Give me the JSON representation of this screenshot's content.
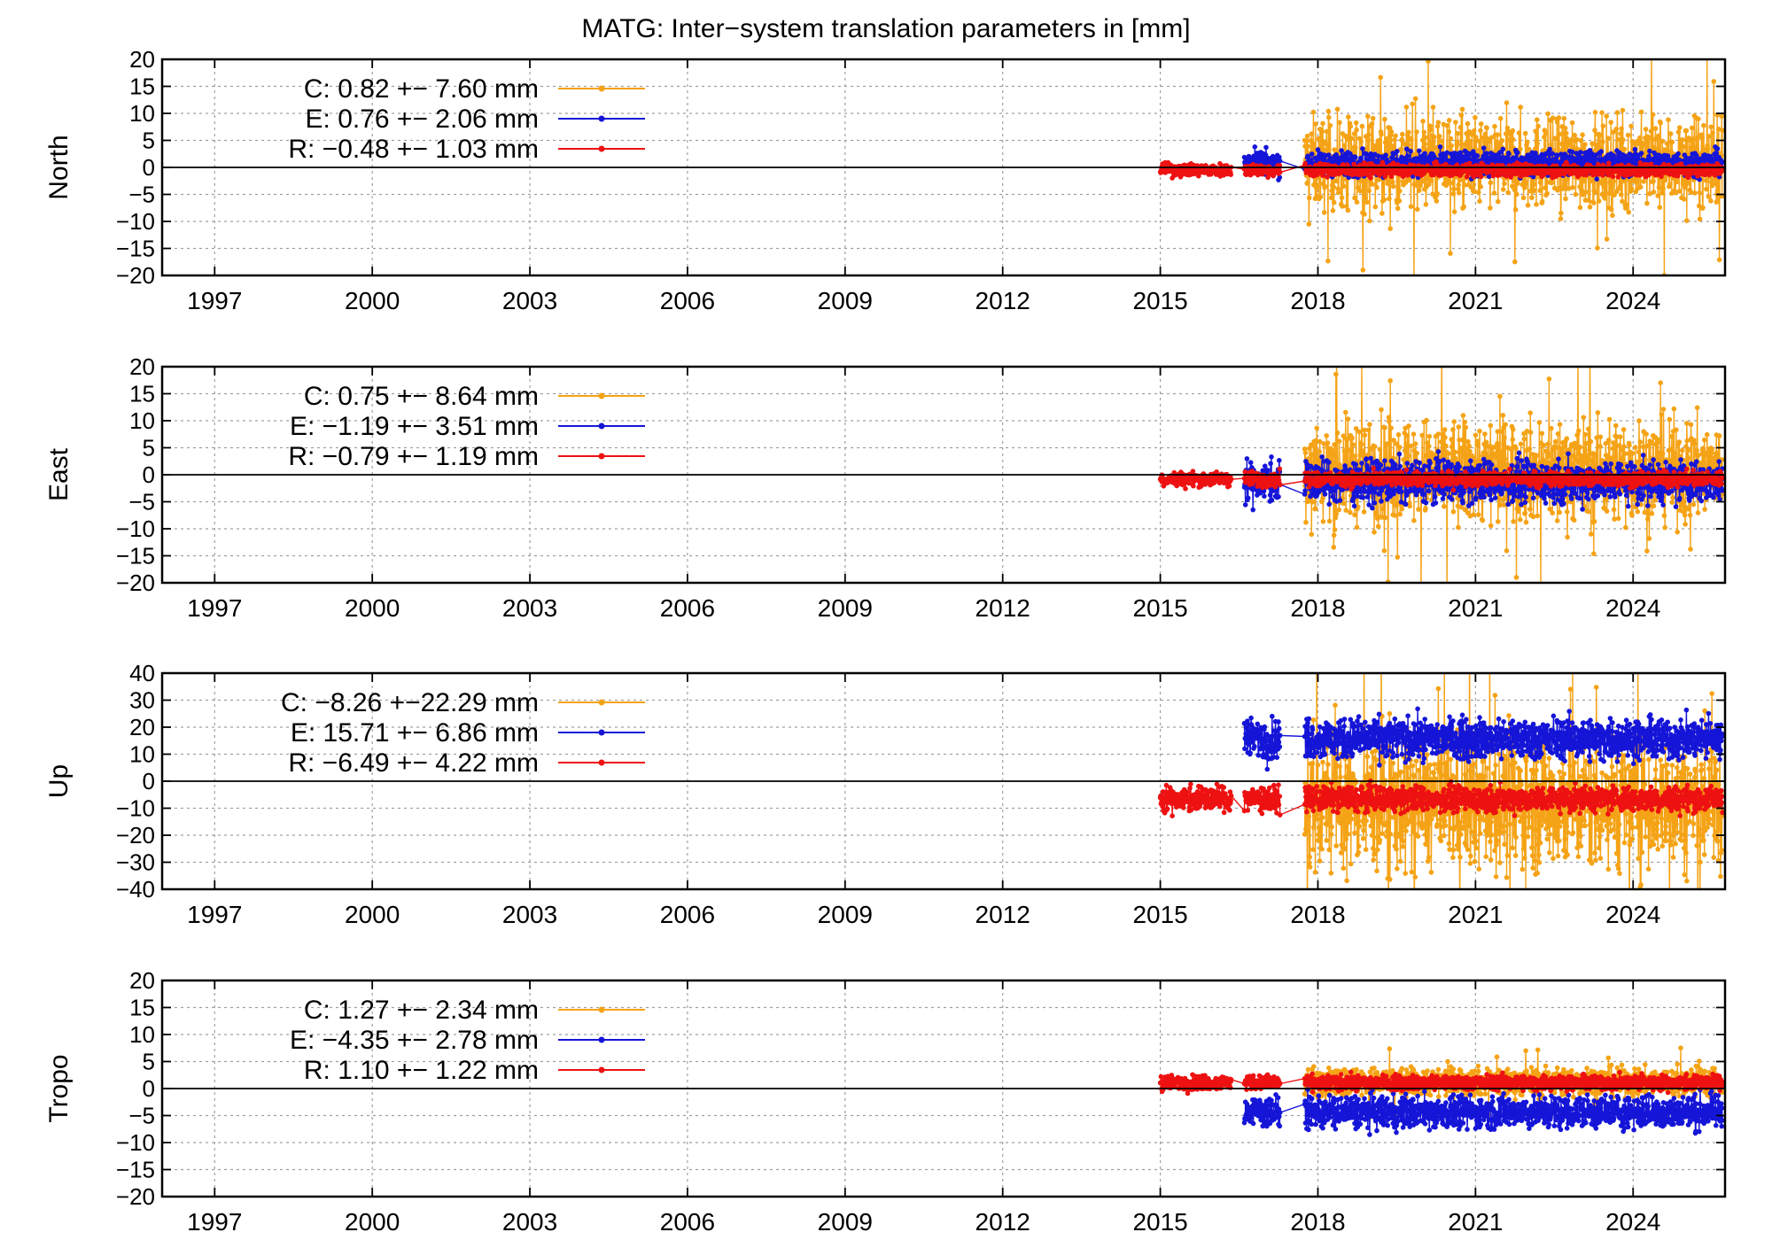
{
  "title": "MATG: Inter−system translation parameters in [mm]",
  "chart_data": [
    {
      "type": "line",
      "panel": "North",
      "ylabel": "North",
      "xlim": [
        1996.0,
        2025.75
      ],
      "ylim": [
        -20,
        20
      ],
      "xticks": [
        1997,
        2000,
        2003,
        2006,
        2009,
        2012,
        2015,
        2018,
        2021,
        2024
      ],
      "xtick_labels": [
        "1997",
        "2000",
        "2003",
        "2006",
        "2009",
        "2012",
        "2015",
        "2018",
        "2021",
        "2024"
      ],
      "yticks": [
        -20,
        -15,
        -10,
        -5,
        0,
        5,
        10,
        15,
        20
      ],
      "ytick_labels": [
        "−20",
        "−15",
        "−10",
        "−5",
        "0",
        "5",
        "10",
        "15",
        "20"
      ],
      "grid": true,
      "legend_position": "top-left",
      "series": [
        {
          "name": "C",
          "color": "#f5a316",
          "label": "C:   0.82 +− 7.60 mm",
          "mean": 0.82,
          "sigma": 7.6,
          "start": 2017.75,
          "end": 2025.7
        },
        {
          "name": "E",
          "color": "#1515d8",
          "label": "E:   0.76 +− 2.06 mm",
          "mean": 0.76,
          "sigma": 2.06,
          "start": 2016.6,
          "end": 2025.7
        },
        {
          "name": "R",
          "color": "#ee1111",
          "label": "R:  −0.48 +− 1.03 mm",
          "mean": -0.48,
          "sigma": 1.03,
          "start": 2015.0,
          "end": 2025.7
        }
      ]
    },
    {
      "type": "line",
      "panel": "East",
      "ylabel": "East",
      "xlim": [
        1996.0,
        2025.75
      ],
      "ylim": [
        -20,
        20
      ],
      "xticks": [
        1997,
        2000,
        2003,
        2006,
        2009,
        2012,
        2015,
        2018,
        2021,
        2024
      ],
      "xtick_labels": [
        "1997",
        "2000",
        "2003",
        "2006",
        "2009",
        "2012",
        "2015",
        "2018",
        "2021",
        "2024"
      ],
      "yticks": [
        -20,
        -15,
        -10,
        -5,
        0,
        5,
        10,
        15,
        20
      ],
      "ytick_labels": [
        "−20",
        "−15",
        "−10",
        "−5",
        "0",
        "5",
        "10",
        "15",
        "20"
      ],
      "grid": true,
      "legend_position": "top-left",
      "series": [
        {
          "name": "C",
          "color": "#f5a316",
          "label": "C:   0.75 +− 8.64 mm",
          "mean": 0.75,
          "sigma": 8.64,
          "start": 2017.75,
          "end": 2025.7
        },
        {
          "name": "E",
          "color": "#1515d8",
          "label": "E:  −1.19 +− 3.51 mm",
          "mean": -1.19,
          "sigma": 3.51,
          "start": 2016.6,
          "end": 2025.7
        },
        {
          "name": "R",
          "color": "#ee1111",
          "label": "R:  −0.79 +− 1.19 mm",
          "mean": -0.79,
          "sigma": 1.19,
          "start": 2015.0,
          "end": 2025.7
        }
      ]
    },
    {
      "type": "line",
      "panel": "Up",
      "ylabel": "Up",
      "xlim": [
        1996.0,
        2025.75
      ],
      "ylim": [
        -40,
        40
      ],
      "xticks": [
        1997,
        2000,
        2003,
        2006,
        2009,
        2012,
        2015,
        2018,
        2021,
        2024
      ],
      "xtick_labels": [
        "1997",
        "2000",
        "2003",
        "2006",
        "2009",
        "2012",
        "2015",
        "2018",
        "2021",
        "2024"
      ],
      "yticks": [
        -40,
        -30,
        -20,
        -10,
        0,
        10,
        20,
        30,
        40
      ],
      "ytick_labels": [
        "−40",
        "−30",
        "−20",
        "−10",
        "0",
        "10",
        "20",
        "30",
        "40"
      ],
      "grid": true,
      "legend_position": "top-left",
      "series": [
        {
          "name": "C",
          "color": "#f5a316",
          "label": "C:  −8.26 +−22.29 mm",
          "mean": -8.26,
          "sigma": 22.29,
          "start": 2017.75,
          "end": 2025.7
        },
        {
          "name": "E",
          "color": "#1515d8",
          "label": "E:  15.71 +− 6.86 mm",
          "mean": 15.71,
          "sigma": 6.86,
          "start": 2016.6,
          "end": 2025.7
        },
        {
          "name": "R",
          "color": "#ee1111",
          "label": "R:  −6.49 +− 4.22 mm",
          "mean": -6.49,
          "sigma": 4.22,
          "start": 2015.0,
          "end": 2025.7
        }
      ]
    },
    {
      "type": "line",
      "panel": "Tropo",
      "ylabel": "Tropo",
      "xlim": [
        1996.0,
        2025.75
      ],
      "ylim": [
        -20,
        20
      ],
      "xticks": [
        1997,
        2000,
        2003,
        2006,
        2009,
        2012,
        2015,
        2018,
        2021,
        2024
      ],
      "xtick_labels": [
        "1997",
        "2000",
        "2003",
        "2006",
        "2009",
        "2012",
        "2015",
        "2018",
        "2021",
        "2024"
      ],
      "yticks": [
        -20,
        -15,
        -10,
        -5,
        0,
        5,
        10,
        15,
        20
      ],
      "ytick_labels": [
        "−20",
        "−15",
        "−10",
        "−5",
        "0",
        "5",
        "10",
        "15",
        "20"
      ],
      "grid": true,
      "legend_position": "top-left",
      "series": [
        {
          "name": "C",
          "color": "#f5a316",
          "label": "C:   1.27 +− 2.34 mm",
          "mean": 1.27,
          "sigma": 2.34,
          "start": 2017.75,
          "end": 2025.7
        },
        {
          "name": "E",
          "color": "#1515d8",
          "label": "E:  −4.35 +− 2.78 mm",
          "mean": -4.35,
          "sigma": 2.78,
          "start": 2016.6,
          "end": 2025.7
        },
        {
          "name": "R",
          "color": "#ee1111",
          "label": "R:   1.10 +− 1.22 mm",
          "mean": 1.1,
          "sigma": 1.22,
          "start": 2015.0,
          "end": 2025.7
        }
      ]
    }
  ]
}
